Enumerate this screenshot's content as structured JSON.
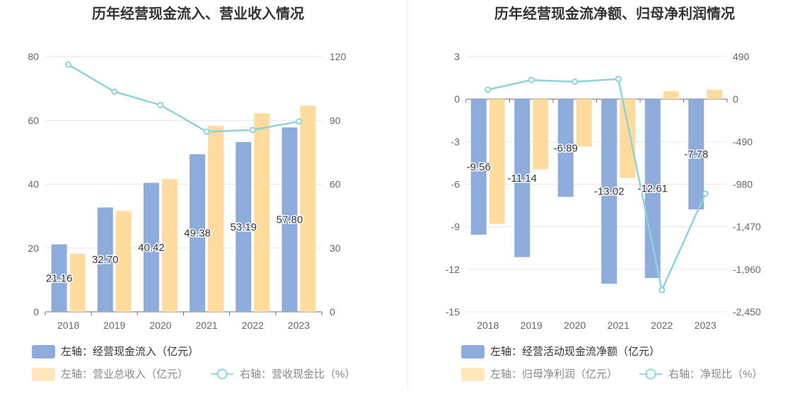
{
  "colors": {
    "bar_primary": "#8eacdb",
    "bar_secondary": "#ffdc9e",
    "line": "#8dd3d8",
    "axis_text": "#666666",
    "label_text": "#333333",
    "grid": "#e3e6ef",
    "title": "#333333"
  },
  "chart_data": [
    {
      "type": "bar",
      "title": "历年经营现金流入、营业收入情况",
      "categories": [
        "2018",
        "2019",
        "2020",
        "2021",
        "2022",
        "2023"
      ],
      "y_left": {
        "ticks": [
          "0",
          "20",
          "40",
          "60",
          "80"
        ],
        "range": [
          0,
          80
        ]
      },
      "y_right": {
        "ticks": [
          "0",
          "30",
          "60",
          "90",
          "120"
        ],
        "range": [
          0,
          120
        ]
      },
      "series": [
        {
          "name": "左轴：经营现金流入（亿元）",
          "kind": "bar",
          "axis": "left",
          "color_key": "bar_primary",
          "values": [
            21.16,
            32.7,
            40.42,
            49.38,
            53.19,
            57.8
          ],
          "labels": [
            "21.16",
            "32.70",
            "40.42",
            "49.38",
            "53.19",
            "57.80"
          ]
        },
        {
          "name": "左轴：营业总收入（亿元）",
          "kind": "bar",
          "axis": "left",
          "color_key": "bar_secondary",
          "values": [
            18.2,
            31.6,
            41.6,
            58.3,
            62.2,
            64.6
          ]
        },
        {
          "name": "右轴：营收现金比（%）",
          "kind": "line",
          "axis": "right",
          "color_key": "line",
          "values": [
            116.2,
            103.5,
            97.2,
            84.7,
            85.5,
            89.5
          ]
        }
      ]
    },
    {
      "type": "bar",
      "title": "历年经营现金流净额、归母净利润情况",
      "categories": [
        "2018",
        "2019",
        "2020",
        "2021",
        "2022",
        "2023"
      ],
      "y_left": {
        "ticks": [
          "3",
          "0",
          "-3",
          "-6",
          "-9",
          "-12",
          "-15"
        ],
        "range": [
          -15,
          3
        ]
      },
      "y_right": {
        "ticks": [
          "490",
          "0",
          "-490",
          "-980",
          "-1,470",
          "-1,960",
          "-2,450"
        ],
        "range": [
          -2450,
          490
        ]
      },
      "series": [
        {
          "name": "左轴：经营活动现金流净额（亿元）",
          "kind": "bar",
          "axis": "left",
          "color_key": "bar_primary",
          "values": [
            -9.56,
            -11.14,
            -6.89,
            -13.02,
            -12.61,
            -7.78
          ],
          "labels": [
            "-9.56",
            "-11.14",
            "-6.89",
            "-13.02",
            "-12.61",
            "-7.78"
          ]
        },
        {
          "name": "左轴：归母净利润（亿元）",
          "kind": "bar",
          "axis": "left",
          "color_key": "bar_secondary",
          "values": [
            -8.8,
            -4.95,
            -3.35,
            -5.55,
            0.55,
            0.65
          ]
        },
        {
          "name": "右轴：净现比（%）",
          "kind": "line",
          "axis": "right",
          "color_key": "line",
          "values": [
            108,
            220,
            200,
            232,
            -2200,
            -1090
          ]
        }
      ]
    }
  ]
}
